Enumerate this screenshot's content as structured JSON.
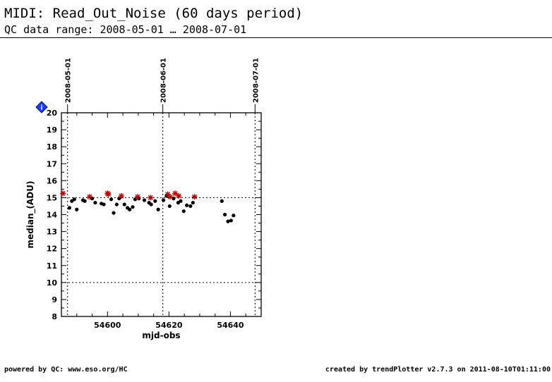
{
  "header": {
    "title": "MIDI: Read_Out_Noise (60 days period)",
    "subtitle": "QC data range: 2008-05-01 … 2008-07-01"
  },
  "footer": {
    "left": "powered by QC: www.eso.org/HC",
    "right": "created by trendPlotter v2.7.3 on 2011-08-10T01:11:00"
  },
  "info_icon": {
    "name": "info-icon",
    "glyph": "i",
    "color": "#1a3cff"
  },
  "chart_data": {
    "type": "scatter",
    "xlabel": "mjd-obs",
    "ylabel": "median_(ADU)",
    "xlim": [
      54585,
      54650
    ],
    "ylim": [
      8,
      20
    ],
    "x_ticks": [
      54600,
      54620,
      54640
    ],
    "y_ticks": [
      8,
      9,
      10,
      11,
      12,
      13,
      14,
      15,
      16,
      17,
      18,
      19,
      20
    ],
    "date_markers": [
      {
        "label": "2008-05-01",
        "mjd": 54587
      },
      {
        "label": "2008-06-01",
        "mjd": 54618
      },
      {
        "label": "2008-07-01",
        "mjd": 54648
      }
    ],
    "reference_lines": [
      15,
      10
    ],
    "grid": false,
    "colors": {
      "normal": "#000000",
      "flagged": "#c00000",
      "date_line": "#000000"
    },
    "series": [
      {
        "marker": "filled-circle",
        "points": [
          [
            54587.6,
            14.4
          ],
          [
            54588.4,
            14.8
          ],
          [
            54589.2,
            14.9
          ],
          [
            54590.0,
            14.3
          ],
          [
            54592.0,
            14.85
          ],
          [
            54592.6,
            14.8
          ],
          [
            54595.0,
            14.95
          ],
          [
            54596.0,
            14.7
          ],
          [
            54598.0,
            14.65
          ],
          [
            54598.8,
            14.6
          ],
          [
            54601.2,
            14.9
          ],
          [
            54602.0,
            14.1
          ],
          [
            54603.0,
            14.6
          ],
          [
            54603.8,
            14.95
          ],
          [
            54605.5,
            14.6
          ],
          [
            54606.5,
            14.4
          ],
          [
            54607.2,
            14.3
          ],
          [
            54608.2,
            14.45
          ],
          [
            54609.0,
            14.9
          ],
          [
            54610.2,
            14.95
          ],
          [
            54612.0,
            14.85
          ],
          [
            54613.5,
            14.7
          ],
          [
            54614.2,
            14.6
          ],
          [
            54615.5,
            14.8
          ],
          [
            54616.5,
            14.3
          ],
          [
            54618.2,
            14.85
          ],
          [
            54619.2,
            15.1
          ],
          [
            54620.2,
            14.5
          ],
          [
            54621.5,
            14.95
          ],
          [
            54623.0,
            14.7
          ],
          [
            54623.8,
            14.8
          ],
          [
            54624.8,
            14.2
          ],
          [
            54625.8,
            14.55
          ],
          [
            54627.0,
            14.5
          ],
          [
            54627.8,
            14.7
          ],
          [
            54637.2,
            14.8
          ],
          [
            54638.2,
            14.0
          ],
          [
            54639.2,
            13.6
          ],
          [
            54640.2,
            13.65
          ],
          [
            54641.0,
            13.95
          ]
        ]
      },
      {
        "marker": "red-asterisk",
        "points": [
          [
            54585.5,
            15.25
          ],
          [
            54594.2,
            15.05
          ],
          [
            54600.0,
            15.25
          ],
          [
            54600.3,
            15.2
          ],
          [
            54604.5,
            15.1
          ],
          [
            54609.8,
            15.05
          ],
          [
            54614.0,
            15.0
          ],
          [
            54619.6,
            15.2
          ],
          [
            54620.4,
            15.05
          ],
          [
            54622.0,
            15.25
          ],
          [
            54623.2,
            15.1
          ],
          [
            54628.3,
            15.05
          ]
        ]
      }
    ]
  }
}
